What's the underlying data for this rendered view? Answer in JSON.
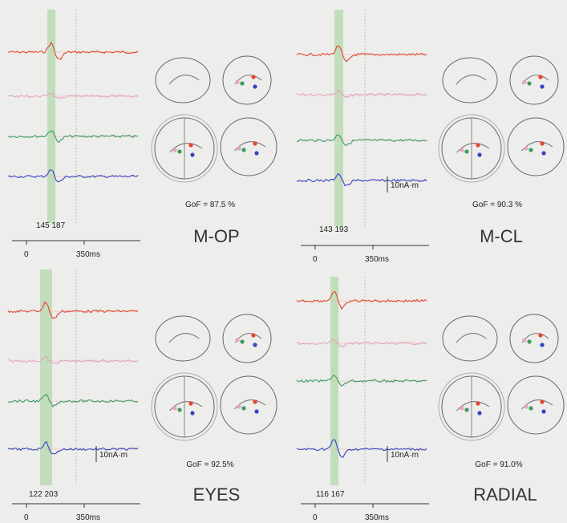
{
  "panels": [
    {
      "title": "M-OP",
      "gof": "GoF =  87.5 %",
      "latency": "145 187",
      "axis_start": "0",
      "axis_end": "350ms"
    },
    {
      "title": "M-CL",
      "gof": "GoF =  90.3 %",
      "latency": "143  193",
      "axis_start": "0",
      "axis_end": "350ms",
      "scale": "10nA·m"
    },
    {
      "title": "EYES",
      "gof": "GoF =  92.5%",
      "latency": "122   203",
      "axis_start": "0",
      "axis_end": "350ms",
      "scale": "10nA·m"
    },
    {
      "title": "RADIAL",
      "gof": "GoF =  91.0%",
      "latency": "116  167",
      "axis_start": "0",
      "axis_end": "350ms",
      "scale": "10nA·m"
    }
  ]
}
